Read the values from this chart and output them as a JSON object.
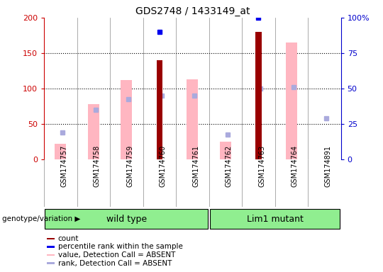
{
  "title": "GDS2748 / 1433149_at",
  "samples": [
    "GSM174757",
    "GSM174758",
    "GSM174759",
    "GSM174760",
    "GSM174761",
    "GSM174762",
    "GSM174763",
    "GSM174764",
    "GSM174891"
  ],
  "count_values": [
    null,
    null,
    null,
    140,
    null,
    null,
    180,
    null,
    null
  ],
  "percentile_values": [
    null,
    null,
    null,
    90,
    null,
    null,
    100,
    null,
    null
  ],
  "pink_bar_values": [
    22,
    78,
    112,
    null,
    113,
    25,
    null,
    165,
    null
  ],
  "light_blue_values": [
    38,
    70,
    85,
    90,
    90,
    35,
    100,
    102,
    58
  ],
  "wt_count": 5,
  "lim_count": 4,
  "ylim_left": [
    0,
    200
  ],
  "ylim_right": [
    0,
    100
  ],
  "left_yticks": [
    0,
    50,
    100,
    150,
    200
  ],
  "right_yticks": [
    0,
    25,
    50,
    75,
    100
  ],
  "right_yticklabels": [
    "0",
    "25",
    "50",
    "75",
    "100%"
  ],
  "left_axis_color": "#cc0000",
  "right_axis_color": "#0000cc",
  "count_color": "#990000",
  "percentile_color": "#0000ee",
  "pink_color": "#FFB6C1",
  "light_blue_color": "#aaaadd",
  "legend_items": [
    {
      "color": "#990000",
      "label": "count"
    },
    {
      "color": "#0000ee",
      "label": "percentile rank within the sample"
    },
    {
      "color": "#FFB6C1",
      "label": "value, Detection Call = ABSENT"
    },
    {
      "color": "#aaaadd",
      "label": "rank, Detection Call = ABSENT"
    }
  ]
}
